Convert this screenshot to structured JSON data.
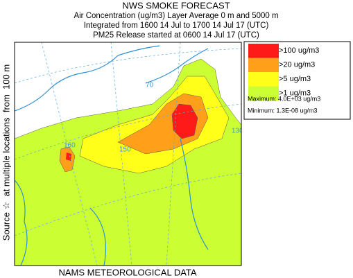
{
  "header": {
    "title": "NWS SMOKE FORECAST",
    "lines": [
      "Air Concentration (ug/m3) Layer Average    0 m and  5000 m",
      "Integrated from 1600 14 Jul to 1700 14 Jul 17 (UTC)",
      "PM25 Release started at 0600 14 Jul 17 (UTC)"
    ]
  },
  "legend": {
    "items": [
      {
        "label": ">100 ug/m3",
        "color": "#ff1a1a"
      },
      {
        "label": ">20 ug/m3",
        "color": "#ff9f1a"
      },
      {
        "label": ">5 ug/m3",
        "color": "#ffff1a"
      },
      {
        "label": ">1 ug/m3",
        "color": "#ccff33"
      }
    ],
    "maximum": "Maximum: 4.0E+03 ug/m3",
    "minimum": "Minimum: 1.3E-08 ug/m3"
  },
  "map": {
    "grid_labels": [
      "70",
      "160",
      "150",
      "130"
    ]
  },
  "source_label": "Source ☆  at multiple locations  from  100 m",
  "footer": "NAMS METEOROLOGICAL DATA"
}
